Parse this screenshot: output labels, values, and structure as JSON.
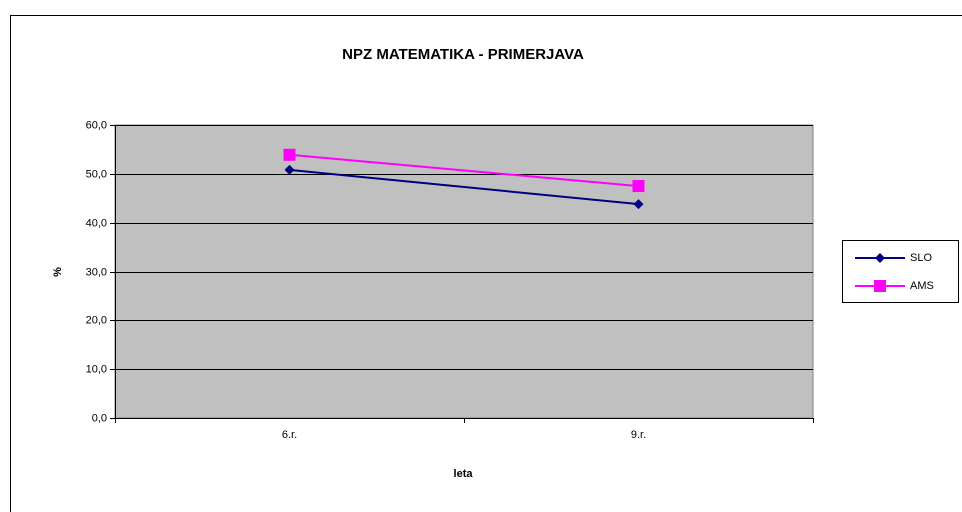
{
  "chart_data": {
    "type": "line",
    "title": "NPZ MATEMATIKA - PRIMERJAVA",
    "x_label": "leta",
    "y_label": "%",
    "categories": [
      "6.r.",
      "9.r."
    ],
    "series": [
      {
        "name": "SLO",
        "color": "#000080",
        "marker": "diamond",
        "values": [
          50.8,
          43.8
        ]
      },
      {
        "name": "AMS",
        "color": "#ff00ff",
        "marker": "square",
        "values": [
          53.9,
          47.5
        ]
      }
    ],
    "ylim": [
      0,
      60
    ],
    "yticks": [
      {
        "value": 0,
        "label": "0,0"
      },
      {
        "value": 10,
        "label": "10,0"
      },
      {
        "value": 20,
        "label": "20,0"
      },
      {
        "value": 30,
        "label": "30,0"
      },
      {
        "value": 40,
        "label": "40,0"
      },
      {
        "value": 50,
        "label": "50,0"
      },
      {
        "value": 60,
        "label": "60,0"
      }
    ],
    "grid": true,
    "legend": "right",
    "plot_background": "#c0c0c0"
  }
}
